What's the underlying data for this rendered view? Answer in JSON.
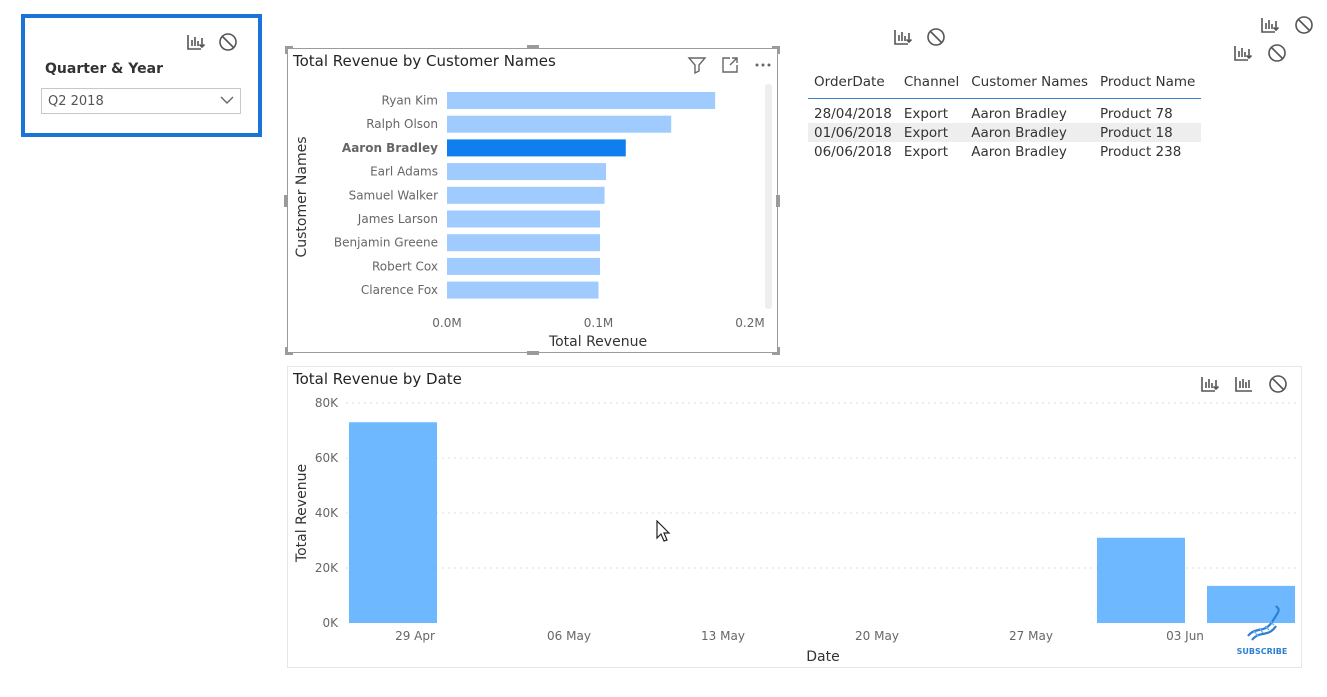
{
  "slicer": {
    "title": "Quarter & Year",
    "selected": "Q2 2018",
    "icons": [
      "drill-icon",
      "no-filter-icon",
      "chevron-down-icon"
    ]
  },
  "top_icons": [
    "drill-icon",
    "no-filter-icon"
  ],
  "customer_chart": {
    "title": "Total Revenue by Customer Names",
    "header_icons": [
      "filter-icon",
      "focus-mode-icon",
      "more-options-icon"
    ]
  },
  "orders_table": {
    "columns": [
      "OrderDate",
      "Channel",
      "Customer Names",
      "Product Name"
    ],
    "rows": [
      [
        "28/04/2018",
        "Export",
        "Aaron Bradley",
        "Product 78"
      ],
      [
        "01/06/2018",
        "Export",
        "Aaron Bradley",
        "Product 18"
      ],
      [
        "06/06/2018",
        "Export",
        "Aaron Bradley",
        "Product 238"
      ]
    ]
  },
  "date_chart": {
    "title": "Total Revenue by Date",
    "header_icons": [
      "drill-icon",
      "hierarchy-icon",
      "no-filter-icon"
    ]
  },
  "watermark": {
    "text": "SUBSCRIBE",
    "icon": "dna-icon"
  },
  "colors": {
    "bar": "#9fcbff",
    "bar_selected": "#0f7ff0",
    "date_bar": "#6db8ff",
    "slicer_border": "#1a73d9"
  },
  "chart_data": [
    {
      "type": "bar",
      "orientation": "horizontal",
      "title": "Total Revenue by Customer Names",
      "xlabel": "Total Revenue",
      "ylabel": "Customer Names",
      "categories": [
        "Ryan Kim",
        "Ralph Olson",
        "Aaron Bradley",
        "Earl Adams",
        "Samuel Walker",
        "James Larson",
        "Benjamin Greene",
        "Robert Cox",
        "Clarence Fox"
      ],
      "values": [
        0.177,
        0.148,
        0.118,
        0.105,
        0.104,
        0.101,
        0.101,
        0.101,
        0.1
      ],
      "unit": "M",
      "highlighted": "Aaron Bradley",
      "xticks": [
        "0.0M",
        "0.1M",
        "0.2M"
      ],
      "xlim": [
        0,
        0.2
      ],
      "grid": false
    },
    {
      "type": "bar",
      "title": "Total Revenue by Date",
      "xlabel": "Date",
      "ylabel": "Total Revenue",
      "x": [
        "2018-04-28",
        "2018-06-01",
        "2018-06-06"
      ],
      "values": [
        73000,
        31000,
        13500
      ],
      "xticks": [
        "29 Apr",
        "06 May",
        "13 May",
        "20 May",
        "27 May",
        "03 Jun"
      ],
      "yticks": [
        "0K",
        "20K",
        "40K",
        "60K",
        "80K"
      ],
      "ylim": [
        0,
        80000
      ],
      "grid": true
    }
  ]
}
